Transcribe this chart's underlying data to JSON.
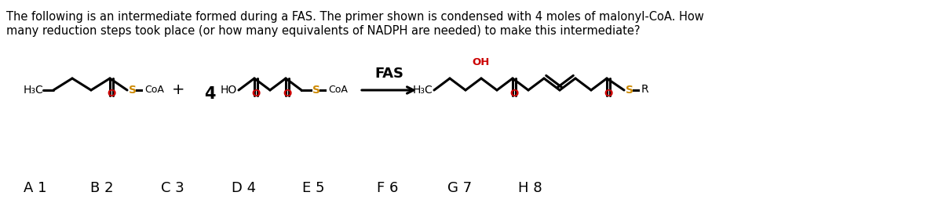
{
  "question_line1": "The following is an intermediate formed during a FAS. The primer shown is condensed with 4 moles of malonyl-CoA. How",
  "question_line2": "many reduction steps took place (or how many equivalents of NADPH are needed) to make this intermediate?",
  "answers": [
    "A 1",
    "B 2",
    "C 3",
    "D 4",
    "E 5",
    "F 6",
    "G 7",
    "H 8"
  ],
  "bg_color": "#ffffff",
  "text_color": "#000000",
  "red_color": "#cc0000",
  "gold_color": "#cc8800",
  "arrow_label": "FAS"
}
